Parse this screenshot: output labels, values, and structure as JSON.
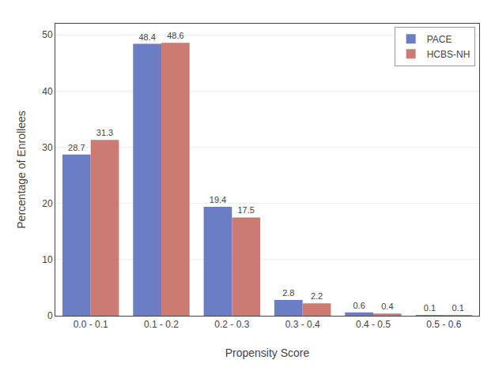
{
  "chart_data": {
    "type": "bar",
    "categories": [
      "0.0 - 0.1",
      "0.1 - 0.2",
      "0.2 - 0.3",
      "0.3 - 0.4",
      "0.4 - 0.5",
      "0.5 - 0.6"
    ],
    "series": [
      {
        "name": "PACE",
        "color": "#6b7dc4",
        "values": [
          28.7,
          48.4,
          19.4,
          2.8,
          0.6,
          0.1
        ]
      },
      {
        "name": "HCBS-NH",
        "color": "#cc7b72",
        "values": [
          31.3,
          48.6,
          17.5,
          2.2,
          0.4,
          0.1
        ]
      }
    ],
    "xlabel": "Propensity Score",
    "ylabel": "Percentage of Enrollees",
    "ylim": [
      0,
      52
    ],
    "yticks": [
      0,
      10,
      20,
      30,
      40,
      50
    ],
    "grid": true,
    "legend": "upper right",
    "data_labels": true
  }
}
